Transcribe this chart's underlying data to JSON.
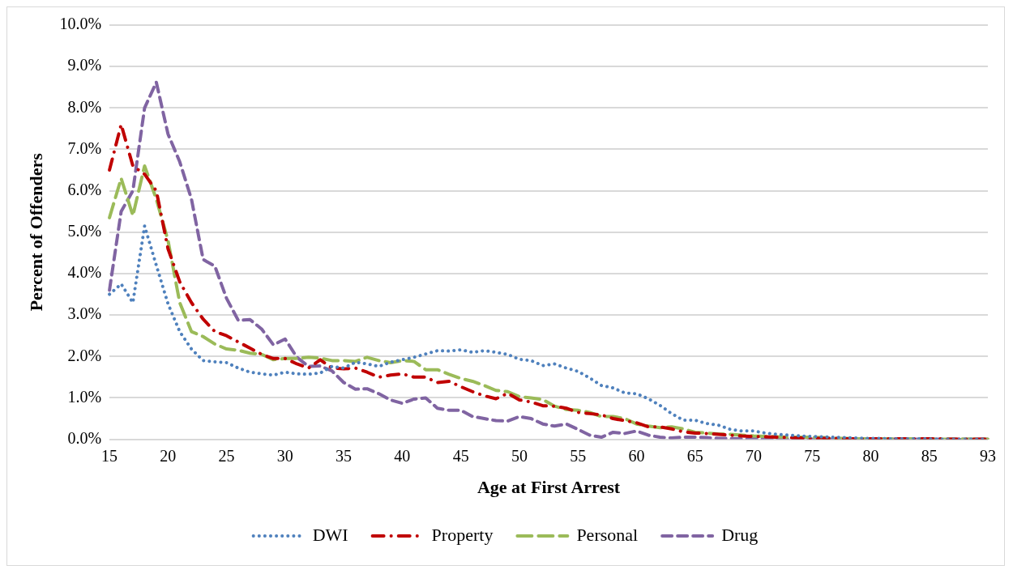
{
  "chart_data": {
    "type": "line",
    "xlabel": "Age at First Arrest",
    "ylabel": "Percent of Offenders",
    "categories": [
      "15",
      null,
      null,
      null,
      null,
      "20",
      null,
      null,
      null,
      null,
      "25",
      null,
      null,
      null,
      null,
      "30",
      null,
      null,
      null,
      null,
      "35",
      null,
      null,
      null,
      null,
      "40",
      null,
      null,
      null,
      null,
      "45",
      null,
      null,
      null,
      null,
      "50",
      null,
      null,
      null,
      null,
      "55",
      null,
      null,
      null,
      null,
      "60",
      null,
      null,
      null,
      null,
      "65",
      null,
      null,
      null,
      null,
      "70",
      null,
      null,
      null,
      null,
      "75",
      null,
      null,
      null,
      null,
      "80",
      null,
      null,
      null,
      null,
      "85",
      null,
      null,
      null,
      null,
      "93"
    ],
    "ylim": [
      0,
      10
    ],
    "yticks": [
      {
        "value": 0,
        "label": "0.0%"
      },
      {
        "value": 1,
        "label": "1.0%"
      },
      {
        "value": 2,
        "label": "2.0%"
      },
      {
        "value": 3,
        "label": "3.0%"
      },
      {
        "value": 4,
        "label": "4.0%"
      },
      {
        "value": 5,
        "label": "5.0%"
      },
      {
        "value": 6,
        "label": "6.0%"
      },
      {
        "value": 7,
        "label": "7.0%"
      },
      {
        "value": 8,
        "label": "8.0%"
      },
      {
        "value": 9,
        "label": "9.0%"
      },
      {
        "value": 10,
        "label": "10.0%"
      }
    ],
    "grid": "y",
    "legend": "bottom",
    "marker": "none",
    "series": [
      {
        "name": "DWI",
        "color": "#4f81bd",
        "line_style": "dotted",
        "values": [
          3.5,
          3.75,
          3.3,
          5.15,
          4.2,
          3.27,
          2.6,
          2.18,
          1.9,
          1.87,
          1.85,
          1.72,
          1.62,
          1.58,
          1.55,
          1.62,
          1.58,
          1.57,
          1.6,
          1.76,
          1.72,
          1.86,
          1.82,
          1.76,
          1.86,
          1.92,
          1.98,
          2.06,
          2.14,
          2.13,
          2.16,
          2.1,
          2.14,
          2.1,
          2.05,
          1.93,
          1.9,
          1.78,
          1.82,
          1.72,
          1.64,
          1.48,
          1.3,
          1.24,
          1.12,
          1.1,
          0.98,
          0.82,
          0.62,
          0.46,
          0.46,
          0.38,
          0.34,
          0.24,
          0.2,
          0.2,
          0.15,
          0.12,
          0.1,
          0.08,
          0.07,
          0.06,
          0.05,
          0.04,
          0.03,
          0.02,
          0.02,
          0.01,
          0.01,
          0.01,
          0.01,
          0,
          0,
          0,
          0,
          0
        ]
      },
      {
        "name": "Property",
        "color": "#c00000",
        "line_style": "dashed",
        "values": [
          6.5,
          7.6,
          6.6,
          6.4,
          6.0,
          4.6,
          3.8,
          3.3,
          2.9,
          2.6,
          2.5,
          2.35,
          2.2,
          2.05,
          1.95,
          1.95,
          1.82,
          1.72,
          1.92,
          1.72,
          1.7,
          1.72,
          1.62,
          1.5,
          1.55,
          1.58,
          1.5,
          1.5,
          1.37,
          1.4,
          1.27,
          1.15,
          1.05,
          0.98,
          1.11,
          0.95,
          0.9,
          0.81,
          0.8,
          0.75,
          0.65,
          0.62,
          0.59,
          0.5,
          0.45,
          0.4,
          0.3,
          0.3,
          0.25,
          0.18,
          0.15,
          0.14,
          0.12,
          0.1,
          0.08,
          0.07,
          0.06,
          0.05,
          0.04,
          0.03,
          0.02,
          0.02,
          0.02,
          0.01,
          0.01,
          0.01,
          0.01,
          0.01,
          0.01,
          0.01,
          0.01,
          0.01,
          0,
          0,
          0,
          0
        ]
      },
      {
        "name": "Personal",
        "color": "#9bbb59",
        "line_style": "dashed",
        "values": [
          5.35,
          6.3,
          5.4,
          6.6,
          5.8,
          4.8,
          3.3,
          2.6,
          2.48,
          2.3,
          2.18,
          2.15,
          2.08,
          2.05,
          1.92,
          1.95,
          1.95,
          1.98,
          1.96,
          1.9,
          1.9,
          1.88,
          1.98,
          1.9,
          1.85,
          1.9,
          1.88,
          1.68,
          1.68,
          1.57,
          1.47,
          1.4,
          1.3,
          1.18,
          1.15,
          1.03,
          1.0,
          0.96,
          0.8,
          0.72,
          0.7,
          0.65,
          0.55,
          0.55,
          0.5,
          0.37,
          0.32,
          0.28,
          0.3,
          0.25,
          0.17,
          0.15,
          0.13,
          0.12,
          0.1,
          0.08,
          0.07,
          0.06,
          0.05,
          0.05,
          0.05,
          0.04,
          0.02,
          0.02,
          0.01,
          0.01,
          0.01,
          0.01,
          0.01,
          0.01,
          0.01,
          0,
          0,
          0,
          0,
          0
        ]
      },
      {
        "name": "Drug",
        "color": "#8064a2",
        "line_style": "dashed",
        "values": [
          3.6,
          5.5,
          6.0,
          8.0,
          8.62,
          7.37,
          6.7,
          5.8,
          4.34,
          4.18,
          3.4,
          2.87,
          2.89,
          2.66,
          2.28,
          2.42,
          1.98,
          1.76,
          1.77,
          1.65,
          1.37,
          1.21,
          1.22,
          1.1,
          0.95,
          0.87,
          0.97,
          1.0,
          0.75,
          0.7,
          0.7,
          0.55,
          0.5,
          0.45,
          0.44,
          0.55,
          0.5,
          0.37,
          0.32,
          0.37,
          0.24,
          0.1,
          0.05,
          0.17,
          0.14,
          0.2,
          0.1,
          0.05,
          0.03,
          0.05,
          0.05,
          0.04,
          0.02,
          0.02,
          0.01,
          0.01,
          0.01,
          0.01,
          0.01,
          0.01,
          0,
          0,
          0,
          0,
          0,
          0,
          0,
          0,
          0,
          0,
          0,
          0,
          0,
          0,
          0,
          0
        ]
      }
    ]
  }
}
